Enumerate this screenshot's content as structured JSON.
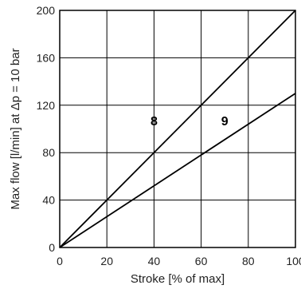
{
  "chart_data": {
    "type": "line",
    "xlabel": "Stroke [% of max]",
    "ylabel": "Max flow [l/min] at Δp = 10 bar",
    "xlim": [
      0,
      100
    ],
    "ylim": [
      0,
      200
    ],
    "x_ticks": [
      "0",
      "20",
      "40",
      "60",
      "80",
      "100"
    ],
    "y_ticks": [
      "0",
      "40",
      "80",
      "120",
      "160",
      "200"
    ],
    "grid": true,
    "series": [
      {
        "name": "8",
        "x": [
          0,
          100
        ],
        "y": [
          0,
          200
        ],
        "label_at": [
          40,
          103
        ]
      },
      {
        "name": "9",
        "x": [
          0,
          100
        ],
        "y": [
          0,
          130
        ],
        "label_at": [
          70,
          103
        ]
      }
    ]
  }
}
